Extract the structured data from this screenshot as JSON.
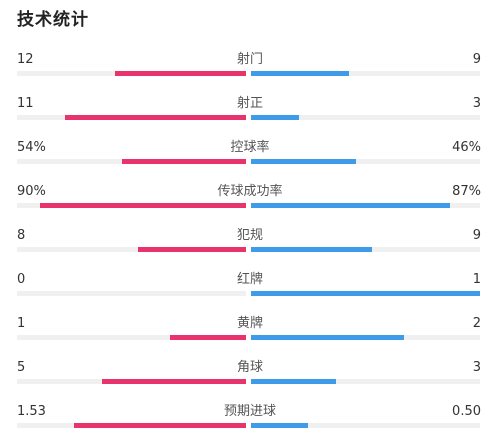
{
  "title": "技术统计",
  "colors": {
    "home": "#e8336d",
    "away": "#3d9be9",
    "track": "#f0f0f0"
  },
  "stats": [
    {
      "label": "射门",
      "home": "12",
      "away": "9",
      "home_frac": 0.57,
      "away_frac": 0.43
    },
    {
      "label": "射正",
      "home": "11",
      "away": "3",
      "home_frac": 0.79,
      "away_frac": 0.21
    },
    {
      "label": "控球率",
      "home": "54%",
      "away": "46%",
      "home_frac": 0.54,
      "away_frac": 0.46
    },
    {
      "label": "传球成功率",
      "home": "90%",
      "away": "87%",
      "home_frac": 0.9,
      "away_frac": 0.87
    },
    {
      "label": "犯规",
      "home": "8",
      "away": "9",
      "home_frac": 0.47,
      "away_frac": 0.53
    },
    {
      "label": "红牌",
      "home": "0",
      "away": "1",
      "home_frac": 0.0,
      "away_frac": 1.0
    },
    {
      "label": "黄牌",
      "home": "1",
      "away": "2",
      "home_frac": 0.33,
      "away_frac": 0.67
    },
    {
      "label": "角球",
      "home": "5",
      "away": "3",
      "home_frac": 0.63,
      "away_frac": 0.37
    },
    {
      "label": "预期进球",
      "home": "1.53",
      "away": "0.50",
      "home_frac": 0.75,
      "away_frac": 0.25
    }
  ]
}
